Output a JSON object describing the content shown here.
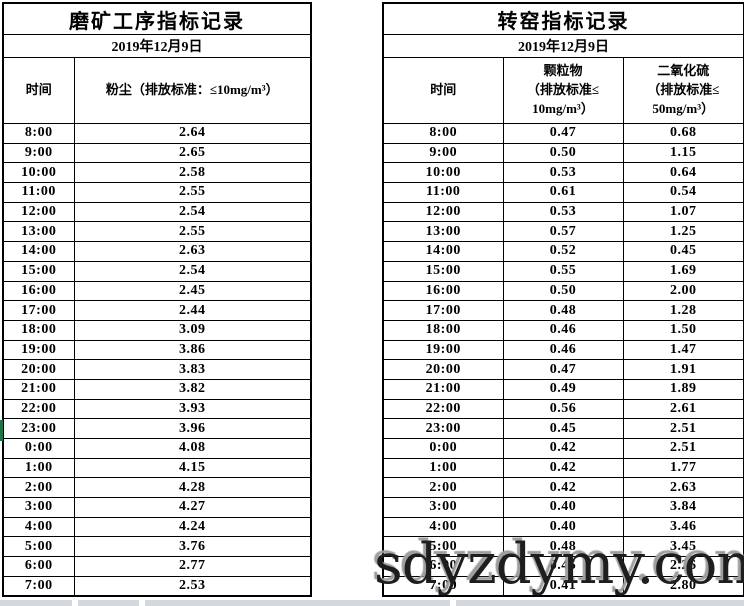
{
  "watermark": "sdyzdymy.com",
  "left_table": {
    "title": "磨矿工序指标记录",
    "date": "2019年12月9日",
    "columns": [
      "时间",
      "粉尘（排放标准：≤10mg/m³）"
    ],
    "rows": [
      [
        "8:00",
        "2.64"
      ],
      [
        "9:00",
        "2.65"
      ],
      [
        "10:00",
        "2.58"
      ],
      [
        "11:00",
        "2.55"
      ],
      [
        "12:00",
        "2.54"
      ],
      [
        "13:00",
        "2.55"
      ],
      [
        "14:00",
        "2.63"
      ],
      [
        "15:00",
        "2.54"
      ],
      [
        "16:00",
        "2.45"
      ],
      [
        "17:00",
        "2.44"
      ],
      [
        "18:00",
        "3.09"
      ],
      [
        "19:00",
        "3.86"
      ],
      [
        "20:00",
        "3.83"
      ],
      [
        "21:00",
        "3.82"
      ],
      [
        "22:00",
        "3.93"
      ],
      [
        "23:00",
        "3.96"
      ],
      [
        "0:00",
        "4.08"
      ],
      [
        "1:00",
        "4.15"
      ],
      [
        "2:00",
        "4.28"
      ],
      [
        "3:00",
        "4.27"
      ],
      [
        "4:00",
        "4.24"
      ],
      [
        "5:00",
        "3.76"
      ],
      [
        "6:00",
        "2.77"
      ],
      [
        "7:00",
        "2.53"
      ]
    ]
  },
  "right_table": {
    "title": "转窑指标记录",
    "date": "2019年12月9日",
    "columns": [
      "时间",
      "颗粒物\n（排放标准≤\n10mg/m³）",
      "二氧化硫\n（排放标准≤\n50mg/m³）"
    ],
    "rows": [
      [
        "8:00",
        "0.47",
        "0.68"
      ],
      [
        "9:00",
        "0.50",
        "1.15"
      ],
      [
        "10:00",
        "0.53",
        "0.64"
      ],
      [
        "11:00",
        "0.61",
        "0.54"
      ],
      [
        "12:00",
        "0.53",
        "1.07"
      ],
      [
        "13:00",
        "0.57",
        "1.25"
      ],
      [
        "14:00",
        "0.52",
        "0.45"
      ],
      [
        "15:00",
        "0.55",
        "1.69"
      ],
      [
        "16:00",
        "0.50",
        "2.00"
      ],
      [
        "17:00",
        "0.48",
        "1.28"
      ],
      [
        "18:00",
        "0.46",
        "1.50"
      ],
      [
        "19:00",
        "0.46",
        "1.47"
      ],
      [
        "20:00",
        "0.47",
        "1.91"
      ],
      [
        "21:00",
        "0.49",
        "1.89"
      ],
      [
        "22:00",
        "0.56",
        "2.61"
      ],
      [
        "23:00",
        "0.45",
        "2.51"
      ],
      [
        "0:00",
        "0.42",
        "2.51"
      ],
      [
        "1:00",
        "0.42",
        "1.77"
      ],
      [
        "2:00",
        "0.42",
        "2.63"
      ],
      [
        "3:00",
        "0.40",
        "3.84"
      ],
      [
        "4:00",
        "0.40",
        "3.46"
      ],
      [
        "5:00",
        "0.48",
        "3.45"
      ],
      [
        "6:00",
        "0.45",
        "2.26"
      ],
      [
        "7:00",
        "0.41",
        "2.80"
      ]
    ]
  }
}
